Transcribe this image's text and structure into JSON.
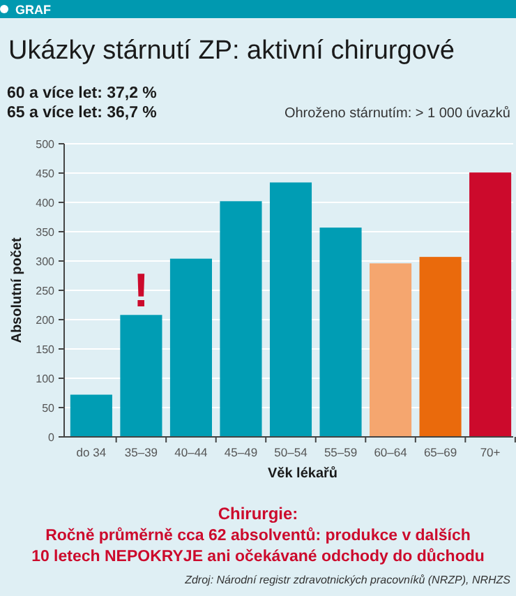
{
  "chart_data": {
    "type": "bar",
    "title": "Ukázky stárnutí ZP: aktivní chirurgové",
    "xlabel": "Věk lékařů",
    "ylabel": "Absolutní počet",
    "categories": [
      "do 34",
      "35–39",
      "40–44",
      "45–49",
      "50–54",
      "55–59",
      "60–64",
      "65–69",
      "70+"
    ],
    "values": [
      72,
      208,
      304,
      402,
      434,
      357,
      296,
      307,
      451
    ],
    "colors": [
      "#009db4",
      "#009db4",
      "#009db4",
      "#009db4",
      "#009db4",
      "#009db4",
      "#f5a66f",
      "#ea6a0c",
      "#cc0a2c"
    ],
    "ylim": [
      0,
      500
    ],
    "yticks": [
      0,
      50,
      100,
      150,
      200,
      250,
      300,
      350,
      400,
      450,
      500
    ],
    "grid": "y",
    "annotations": [
      "GRAF",
      "60 a více let: 37,2 %",
      "65 a více let: 36,7 %",
      "Ohroženo stárnutím: > 1 000 úvazků",
      {
        "text": "!",
        "x": "35–39",
        "y": 208
      },
      "Chirurgie:",
      "Ročně průměrně cca 62 absolventů: produkce v dalších",
      "10 letech NEPOKRYJE ani očekávané odchody do důchodu",
      "Zdroj: Národní registr zdravotnických pracovníků (NRZP), NRHZS"
    ]
  }
}
